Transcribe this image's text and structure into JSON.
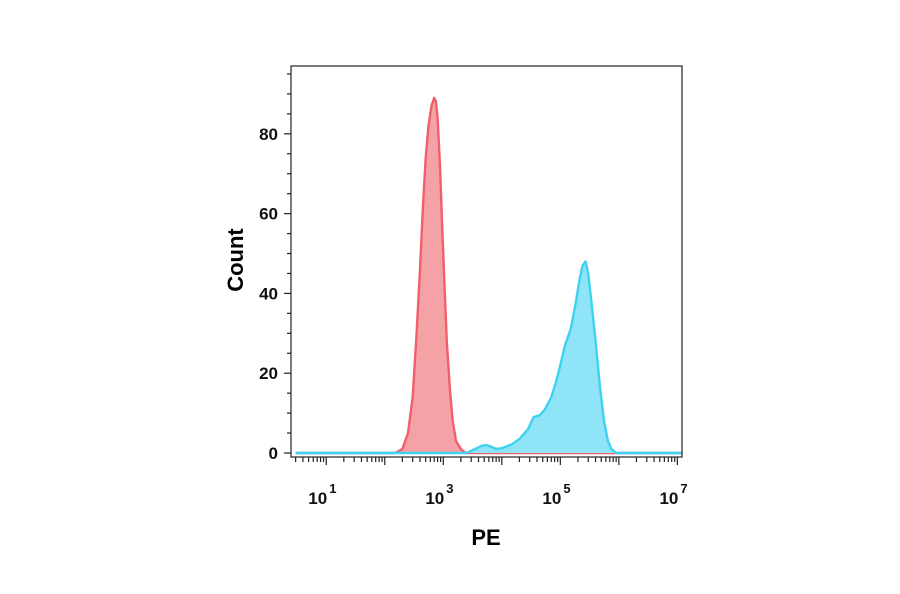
{
  "chart_data": {
    "type": "area",
    "xlabel": "PE",
    "ylabel": "Count",
    "x_scale": "log10",
    "xlim": [
      2.5,
      12000000
    ],
    "ylim": [
      -1,
      97
    ],
    "x_ticks": [
      {
        "value": 10,
        "base": "10",
        "exp": "1"
      },
      {
        "value": 1000,
        "base": "10",
        "exp": "3"
      },
      {
        "value": 100000,
        "base": "10",
        "exp": "5"
      },
      {
        "value": 10000000,
        "base": "10",
        "exp": "7"
      }
    ],
    "y_ticks": [
      {
        "value": 0,
        "label": "0"
      },
      {
        "value": 20,
        "label": "20"
      },
      {
        "value": 40,
        "label": "40"
      },
      {
        "value": 60,
        "label": "60"
      },
      {
        "value": 80,
        "label": "80"
      }
    ],
    "grid": false,
    "series": [
      {
        "color": "#f0606a",
        "fill": "#f4a2a6",
        "points": [
          [
            3,
            0
          ],
          [
            150,
            0
          ],
          [
            200,
            1
          ],
          [
            250,
            5
          ],
          [
            300,
            14
          ],
          [
            350,
            30
          ],
          [
            400,
            46
          ],
          [
            450,
            62
          ],
          [
            500,
            74
          ],
          [
            560,
            82
          ],
          [
            630,
            87
          ],
          [
            700,
            89
          ],
          [
            750,
            88
          ],
          [
            800,
            84
          ],
          [
            880,
            72
          ],
          [
            950,
            58
          ],
          [
            1050,
            42
          ],
          [
            1150,
            28
          ],
          [
            1300,
            16
          ],
          [
            1450,
            8
          ],
          [
            1650,
            3
          ],
          [
            2000,
            1
          ],
          [
            2400,
            0
          ],
          [
            12000000,
            0
          ]
        ]
      },
      {
        "color": "#3fd2f0",
        "fill": "#8fe4f8",
        "points": [
          [
            3,
            0
          ],
          [
            2500,
            0
          ],
          [
            3500,
            1
          ],
          [
            4500,
            1.8
          ],
          [
            5500,
            2
          ],
          [
            6500,
            1.6
          ],
          [
            8000,
            1
          ],
          [
            10000,
            1.2
          ],
          [
            15000,
            2.2
          ],
          [
            20000,
            3.5
          ],
          [
            28000,
            6
          ],
          [
            35000,
            9
          ],
          [
            45000,
            9.5
          ],
          [
            55000,
            11
          ],
          [
            70000,
            14
          ],
          [
            85000,
            18
          ],
          [
            100000,
            22
          ],
          [
            120000,
            27
          ],
          [
            150000,
            31
          ],
          [
            180000,
            37
          ],
          [
            210000,
            43
          ],
          [
            240000,
            47
          ],
          [
            270000,
            48
          ],
          [
            300000,
            45
          ],
          [
            340000,
            38
          ],
          [
            400000,
            28
          ],
          [
            480000,
            16
          ],
          [
            560000,
            8
          ],
          [
            650000,
            3
          ],
          [
            750000,
            1
          ],
          [
            900000,
            0
          ],
          [
            12000000,
            0
          ]
        ]
      }
    ]
  }
}
